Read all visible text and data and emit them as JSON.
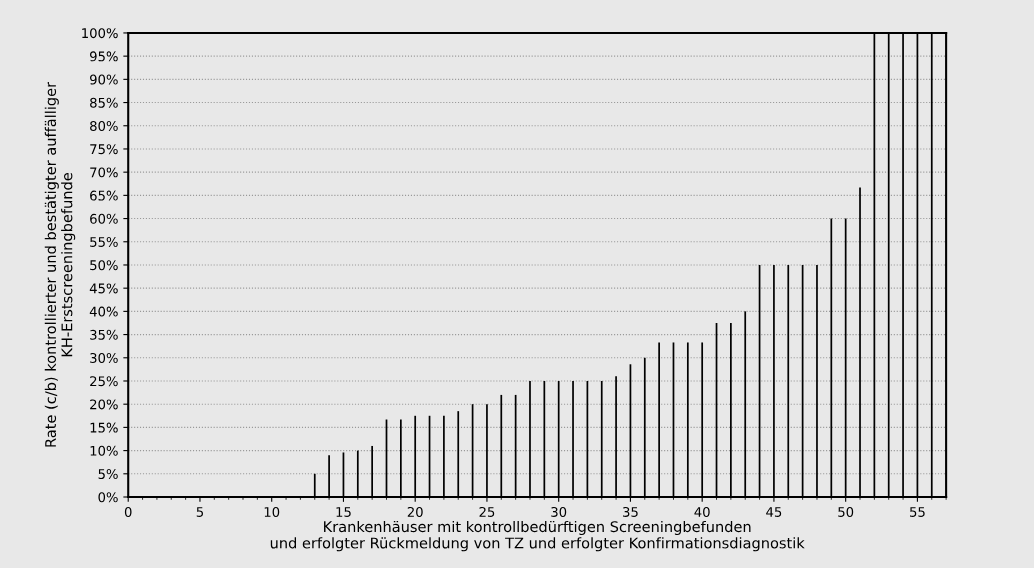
{
  "chart_data": {
    "type": "bar",
    "xlabel": "Krankenhäuser mit kontrollbedürftigen Screeningbefunden\nund erfolgter Rückmeldung von TZ und erfolgter Konfirmationsdiagnostik",
    "ylabel": "Rate (c/b) kontrollierter und bestätigter auffälliger\nKH-Erstscreeningbefunde",
    "x": [
      13,
      14,
      15,
      16,
      17,
      18,
      19,
      20,
      21,
      22,
      23,
      24,
      25,
      26,
      27,
      28,
      29,
      30,
      31,
      32,
      33,
      34,
      35,
      36,
      37,
      38,
      39,
      40,
      41,
      42,
      43,
      44,
      45,
      46,
      47,
      48,
      49,
      50,
      51,
      52,
      53,
      54,
      55,
      56
    ],
    "series": [
      {
        "color": "#000000",
        "values": [
          5,
          9,
          9.6,
          10,
          11,
          16.7,
          16.7,
          17.5,
          17.5,
          17.5,
          18.5,
          20,
          20,
          22,
          22,
          25,
          25,
          25,
          25,
          25,
          25,
          26,
          28.6,
          30,
          33.3,
          33.3,
          33.3,
          33.3,
          37.5,
          37.5,
          40,
          50,
          50,
          50,
          50,
          50,
          60,
          60,
          66.7,
          100,
          100,
          100,
          100,
          100
        ]
      }
    ],
    "xlim": [
      0,
      57
    ],
    "xticks": [
      0,
      5,
      10,
      15,
      20,
      25,
      30,
      35,
      40,
      45,
      50,
      55
    ],
    "ylim": [
      0,
      100
    ],
    "yticks": [
      {
        "value": 0,
        "label": "0%"
      },
      {
        "value": 5,
        "label": "5%"
      },
      {
        "value": 10,
        "label": "10%"
      },
      {
        "value": 15,
        "label": "15%"
      },
      {
        "value": 20,
        "label": "20%"
      },
      {
        "value": 25,
        "label": "25%"
      },
      {
        "value": 30,
        "label": "30%"
      },
      {
        "value": 35,
        "label": "35%"
      },
      {
        "value": 40,
        "label": "40%"
      },
      {
        "value": 45,
        "label": "45%"
      },
      {
        "value": 50,
        "label": "50%"
      },
      {
        "value": 55,
        "label": "55%"
      },
      {
        "value": 60,
        "label": "60%"
      },
      {
        "value": 65,
        "label": "65%"
      },
      {
        "value": 70,
        "label": "70%"
      },
      {
        "value": 75,
        "label": "75%"
      },
      {
        "value": 80,
        "label": "80%"
      },
      {
        "value": 85,
        "label": "85%"
      },
      {
        "value": 90,
        "label": "90%"
      },
      {
        "value": 95,
        "label": "95%"
      },
      {
        "value": 100,
        "label": "100%"
      }
    ],
    "grid": "y"
  }
}
